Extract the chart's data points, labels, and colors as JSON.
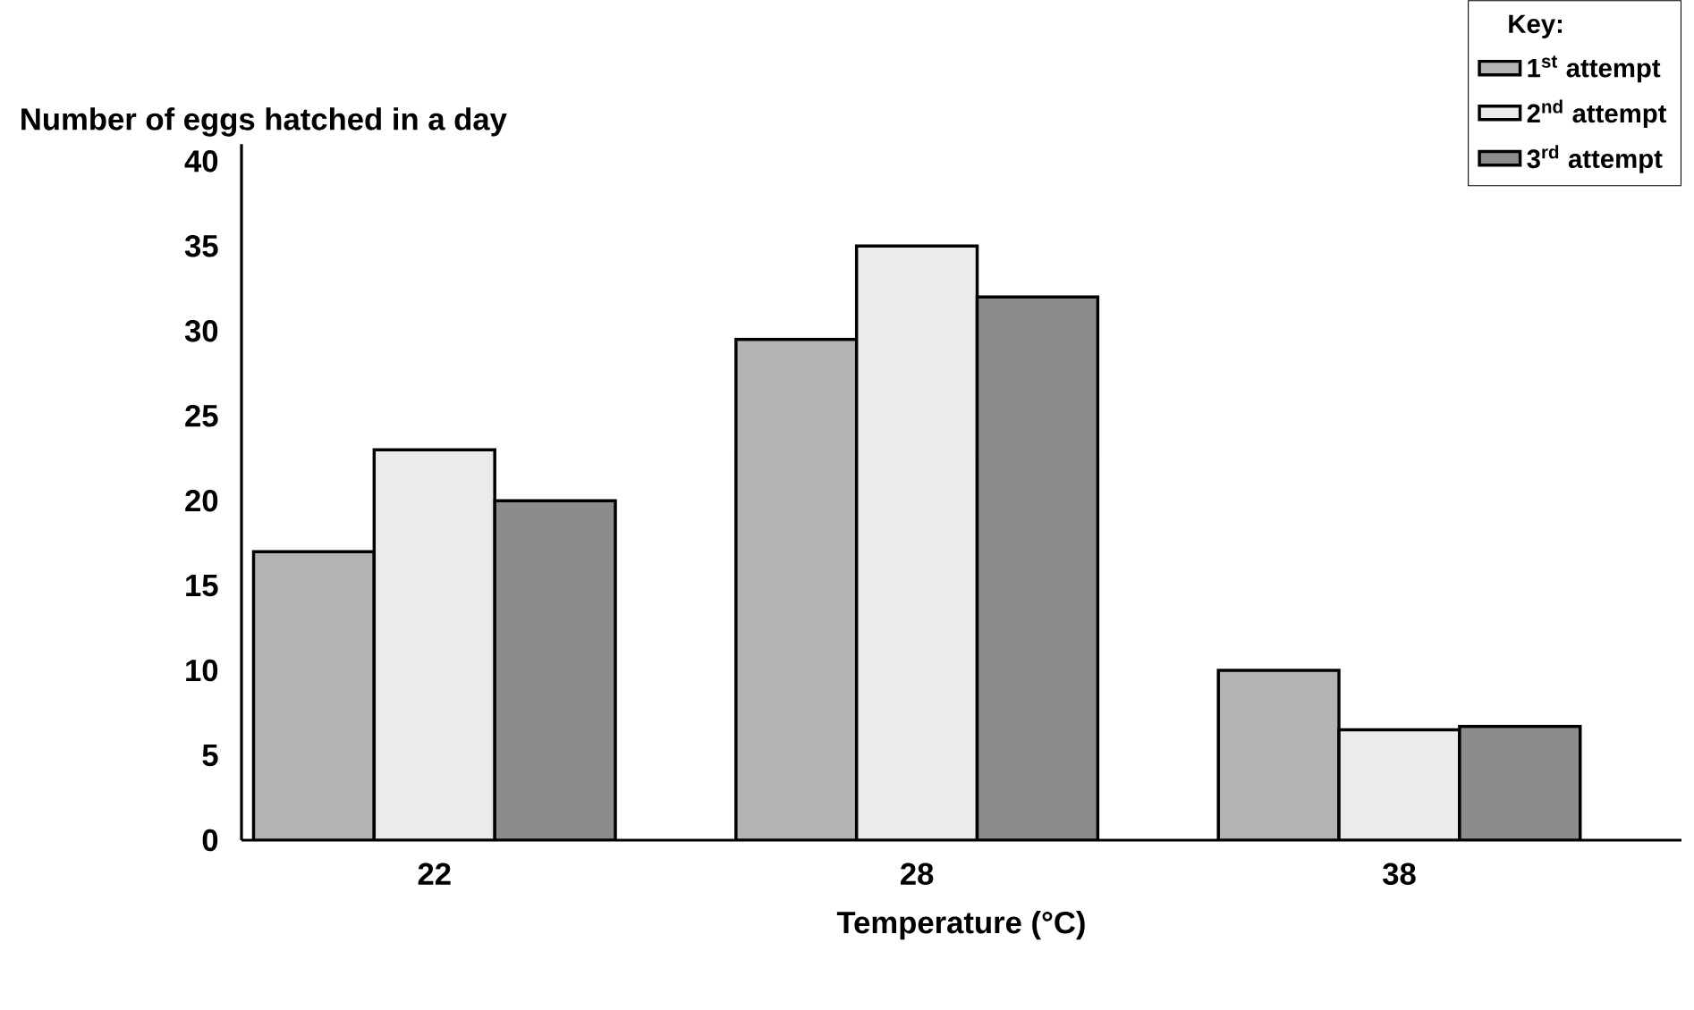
{
  "chart_data": {
    "type": "bar",
    "xlabel": "Temperature (°C)",
    "ylabel": "Number of eggs hatched in a day",
    "legend_title": "Key:",
    "categories": [
      "22",
      "28",
      "38"
    ],
    "series": [
      {
        "name": "1$^{st}$ attempt",
        "color": "#b4b4b4",
        "values": [
          17,
          29.5,
          10
        ]
      },
      {
        "name": "2$^{nd}$ attempt",
        "color": "#ebebeb",
        "values": [
          23,
          35,
          6.5
        ]
      },
      {
        "name": "3$^{rd}$ attempt",
        "color": "#8c8c8c",
        "values": [
          20,
          32,
          6.7
        ]
      }
    ],
    "ylim": [
      0,
      41
    ],
    "yticks": [
      0,
      5,
      10,
      15,
      20,
      25,
      30,
      35,
      40
    ],
    "legend": "top right"
  }
}
